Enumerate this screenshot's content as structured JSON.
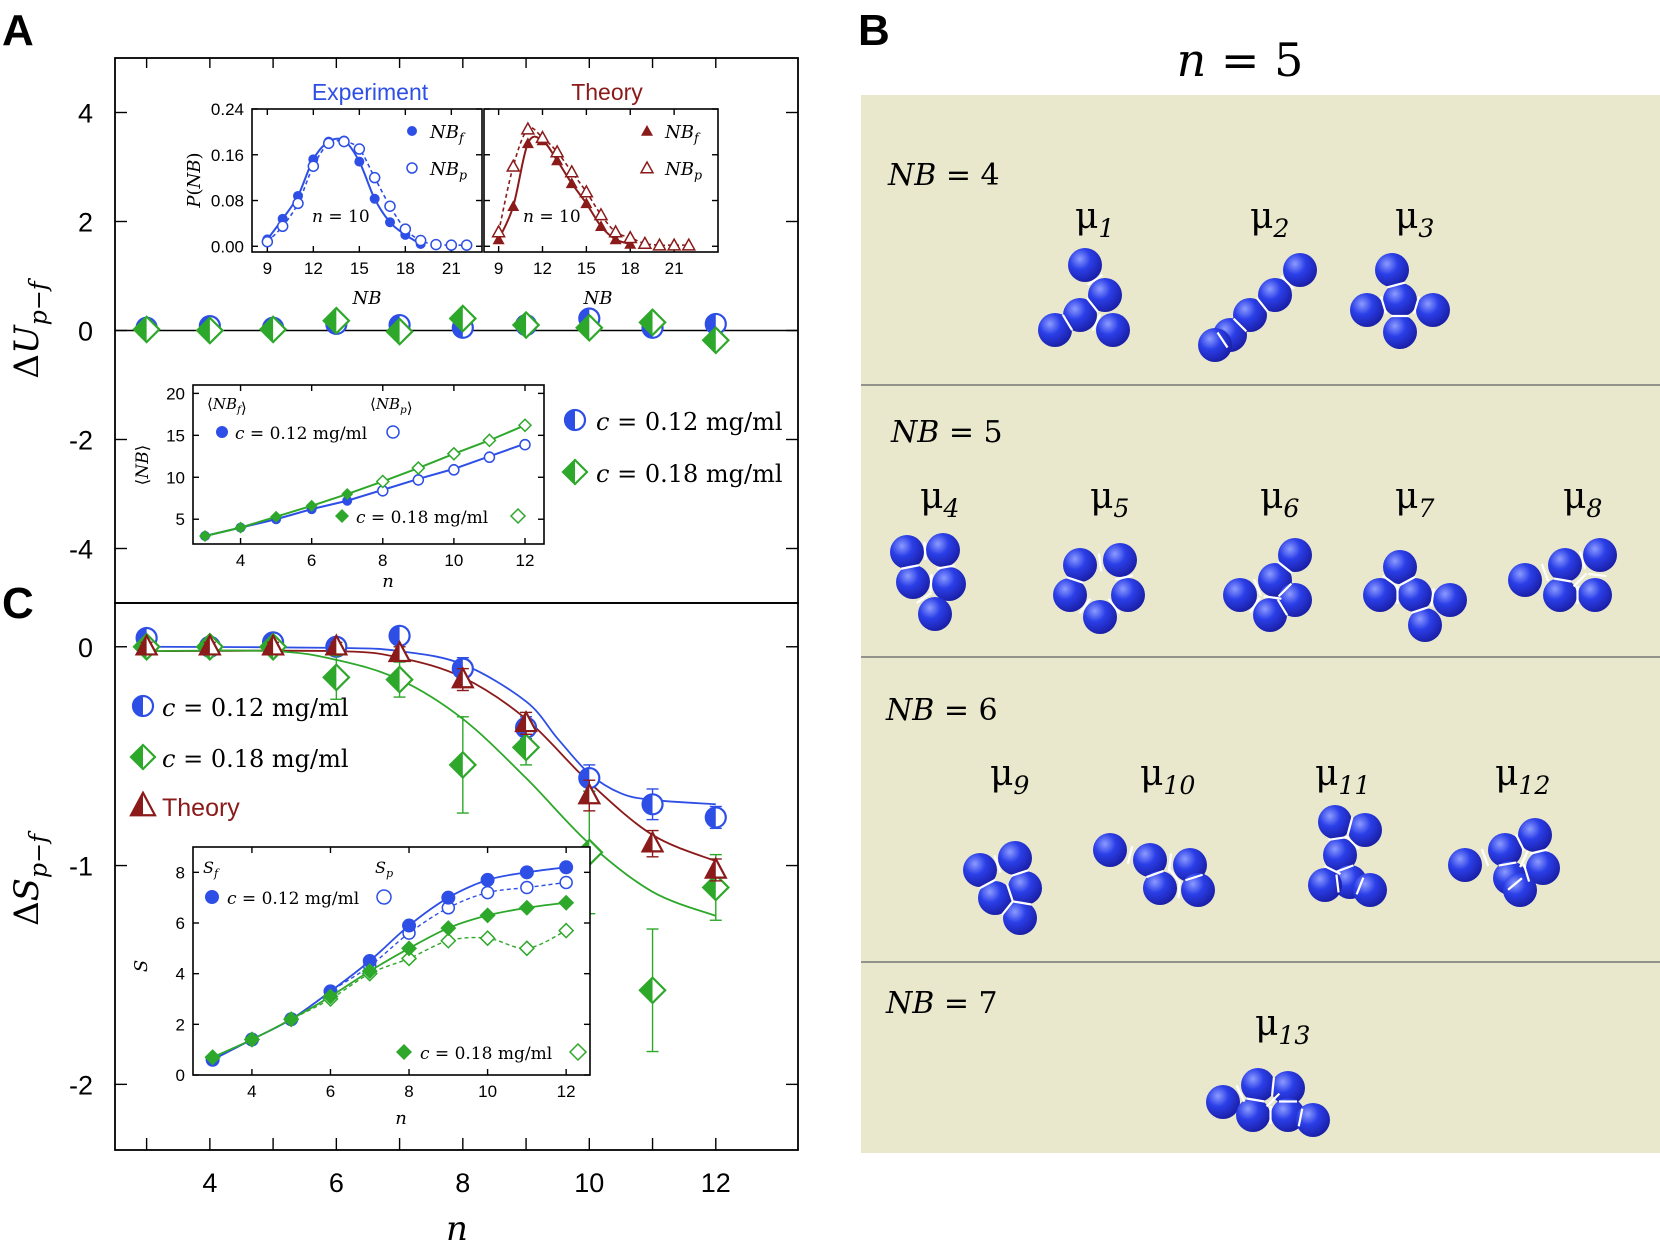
{
  "panels": {
    "a": "A",
    "b": "B",
    "c": "C"
  },
  "colors": {
    "blue": "#2E4FE6",
    "green": "#2EA82A",
    "dark_red": "#8B1A1A",
    "bg_beige": "#E9E8CC",
    "sphere": "#2B3FE8"
  },
  "chart_data": [
    {
      "id": "A",
      "type": "scatter",
      "ylabel": "ΔU_{p−f}",
      "xlim": [
        2.5,
        13.3
      ],
      "ylim": [
        -5,
        5
      ],
      "yticks": [
        -4,
        -2,
        0,
        2,
        4
      ],
      "ytick_labels": [
        "-4",
        "-2",
        "0",
        "2",
        "4"
      ],
      "hline": 0,
      "series": [
        {
          "name": "c = 0.12 mg/ml",
          "marker": "half-circle",
          "color": "#2E4FE6",
          "x": [
            3,
            4,
            5,
            6,
            7,
            8,
            9,
            10,
            11,
            12
          ],
          "y": [
            0.05,
            0.08,
            0.05,
            0.12,
            0.1,
            0.05,
            0.1,
            0.22,
            0.05,
            0.12
          ]
        },
        {
          "name": "c = 0.18 mg/ml",
          "marker": "half-diamond",
          "color": "#2EA82A",
          "x": [
            3,
            4,
            5,
            6,
            7,
            8,
            9,
            10,
            11,
            12
          ],
          "y": [
            0.02,
            0.0,
            0.02,
            0.18,
            -0.02,
            0.22,
            0.1,
            0.05,
            0.15,
            -0.18
          ]
        }
      ]
    },
    {
      "id": "A-inset-experiment",
      "type": "scatter",
      "title": "Experiment",
      "xlabel": "NB",
      "ylabel": "P(NB)",
      "annotation": "n = 10",
      "xlim": [
        8,
        23
      ],
      "ylim": [
        -0.01,
        0.24
      ],
      "xticks": [
        9,
        12,
        15,
        18,
        21
      ],
      "yticks": [
        0.0,
        0.08,
        0.16,
        0.24
      ],
      "ytick_labels": [
        "0.00",
        "0.08",
        "0.16",
        "0.24"
      ],
      "series": [
        {
          "name": "NB_f",
          "marker": "filled-circle",
          "x": [
            9,
            10,
            11,
            12,
            13,
            14,
            15,
            16,
            17,
            18,
            19
          ],
          "y": [
            0.012,
            0.048,
            0.088,
            0.152,
            0.183,
            0.185,
            0.148,
            0.083,
            0.042,
            0.02,
            0.004
          ]
        },
        {
          "name": "NB_p",
          "marker": "open-circle",
          "x": [
            9,
            10,
            11,
            12,
            13,
            14,
            15,
            16,
            17,
            18,
            19,
            20,
            21,
            22
          ],
          "y": [
            0.008,
            0.035,
            0.075,
            0.14,
            0.18,
            0.183,
            0.17,
            0.12,
            0.07,
            0.03,
            0.01,
            0.003,
            0.002,
            0.002
          ]
        }
      ]
    },
    {
      "id": "A-inset-theory",
      "type": "scatter",
      "title": "Theory",
      "xlabel": "NB",
      "annotation": "n = 10",
      "xlim": [
        8,
        24
      ],
      "ylim": [
        -0.01,
        0.24
      ],
      "xticks": [
        9,
        12,
        15,
        18,
        21
      ],
      "series": [
        {
          "name": "NB_f",
          "marker": "filled-triangle",
          "x": [
            9,
            10,
            11,
            12,
            13,
            14,
            15,
            16,
            17,
            18
          ],
          "y": [
            0.012,
            0.07,
            0.18,
            0.185,
            0.15,
            0.11,
            0.075,
            0.035,
            0.012,
            0.004
          ]
        },
        {
          "name": "NB_p",
          "marker": "open-triangle",
          "x": [
            9,
            10,
            11,
            12,
            13,
            14,
            15,
            16,
            17,
            18,
            19,
            20,
            21,
            22
          ],
          "y": [
            0.025,
            0.14,
            0.205,
            0.19,
            0.165,
            0.13,
            0.095,
            0.055,
            0.025,
            0.015,
            0.005,
            0.002,
            0.002,
            0.002
          ]
        }
      ]
    },
    {
      "id": "A-inset-mean-NB",
      "type": "line",
      "xlabel": "n",
      "ylabel": "⟨NB⟩",
      "left_label": "⟨NB_f⟩",
      "right_label": "⟨NB_p⟩",
      "xlim": [
        3,
        12
      ],
      "ylim": [
        3,
        21
      ],
      "xticks": [
        4,
        6,
        8,
        10,
        12
      ],
      "yticks": [
        5,
        10,
        15,
        20
      ],
      "series": [
        {
          "name": "c = 0.12 mg/ml",
          "color": "#2E4FE6",
          "x": [
            3,
            4,
            5,
            6,
            7,
            8,
            9,
            10,
            11,
            12
          ],
          "y_f": [
            3,
            4,
            5,
            6.2,
            7.2,
            8.5,
            9.8,
            11,
            12.5,
            14
          ]
        },
        {
          "name": "c = 0.18 mg/ml",
          "color": "#2EA82A",
          "x": [
            3,
            4,
            5,
            6,
            7,
            8,
            9,
            10,
            11,
            12
          ],
          "y_f": [
            3,
            4,
            5.3,
            6.6,
            8,
            9.5,
            11.1,
            12.8,
            14.4,
            16.2
          ]
        }
      ]
    },
    {
      "id": "C",
      "type": "scatter",
      "xlabel": "n",
      "ylabel": "ΔS_{p−f}",
      "xlim": [
        2.5,
        13.3
      ],
      "ylim": [
        -2.3,
        0.2
      ],
      "xticks": [
        4,
        6,
        8,
        10,
        12
      ],
      "yticks": [
        -2,
        -1,
        0
      ],
      "xtick_labels": [
        "4",
        "6",
        "8",
        "10",
        "12"
      ],
      "ytick_labels": [
        "-2",
        "-1",
        "0"
      ],
      "series": [
        {
          "name": "c = 0.12 mg/ml",
          "marker": "half-circle",
          "color": "#2E4FE6",
          "x": [
            3,
            4,
            5,
            6,
            7,
            8,
            9,
            10,
            11,
            12
          ],
          "y": [
            0.04,
            0.0,
            0.02,
            0.0,
            0.05,
            -0.1,
            -0.37,
            -0.6,
            -0.72,
            -0.78
          ],
          "err": [
            0.02,
            0.02,
            0.02,
            0.02,
            0.04,
            0.05,
            0.05,
            0.06,
            0.07,
            0.05
          ]
        },
        {
          "name": "c = 0.18 mg/ml",
          "marker": "half-diamond",
          "color": "#2EA82A",
          "x": [
            3,
            4,
            5,
            6,
            7,
            8,
            9,
            10,
            11,
            12
          ],
          "y": [
            0.0,
            0.0,
            0.0,
            -0.14,
            -0.15,
            -0.54,
            -0.46,
            -0.94,
            -1.57,
            -1.1
          ],
          "err": [
            0.02,
            0.02,
            0.02,
            0.1,
            0.08,
            0.22,
            0.08,
            0.28,
            0.28,
            0.15
          ]
        },
        {
          "name": "Theory",
          "marker": "half-triangle",
          "color": "#8B1A1A",
          "x": [
            3,
            4,
            5,
            6,
            7,
            8,
            9,
            10,
            11,
            12
          ],
          "y": [
            0.0,
            0.0,
            0.0,
            0.0,
            -0.03,
            -0.15,
            -0.35,
            -0.68,
            -0.9,
            -1.02
          ],
          "err": [
            0.02,
            0.02,
            0.02,
            0.02,
            0.03,
            0.05,
            0.05,
            0.07,
            0.06,
            0.05
          ]
        }
      ],
      "fit_curves": [
        {
          "color": "#2E4FE6",
          "x": [
            3,
            6,
            7,
            8,
            9,
            9.5,
            10,
            10.5,
            11,
            12
          ],
          "y": [
            0,
            -0.005,
            -0.02,
            -0.08,
            -0.25,
            -0.42,
            -0.58,
            -0.67,
            -0.7,
            -0.72
          ]
        },
        {
          "color": "#8B1A1A",
          "x": [
            3,
            6,
            7,
            8,
            9,
            10,
            11,
            12
          ],
          "y": [
            -0.02,
            -0.02,
            -0.05,
            -0.14,
            -0.33,
            -0.62,
            -0.86,
            -0.98
          ]
        },
        {
          "color": "#2EA82A",
          "x": [
            3,
            5,
            6,
            7,
            8,
            9,
            10,
            11,
            12
          ],
          "y": [
            -0.02,
            -0.02,
            -0.06,
            -0.15,
            -0.33,
            -0.6,
            -0.9,
            -1.12,
            -1.23
          ]
        }
      ]
    },
    {
      "id": "C-inset",
      "type": "line",
      "xlabel": "n",
      "ylabel": "S",
      "left_label": "S_f",
      "right_label": "S_p",
      "xlim": [
        2.5,
        12.2
      ],
      "ylim": [
        0,
        9
      ],
      "xticks": [
        4,
        6,
        8,
        10,
        12
      ],
      "yticks": [
        0,
        2,
        4,
        6,
        8
      ],
      "series": [
        {
          "name": "c = 0.12 mg/ml",
          "color": "#2E4FE6",
          "x": [
            3,
            4,
            5,
            6,
            7,
            8,
            9,
            10,
            11,
            12
          ],
          "S_f": [
            0.6,
            1.4,
            2.2,
            3.3,
            4.5,
            5.9,
            7.0,
            7.7,
            8.0,
            8.2
          ],
          "S_p": [
            0.6,
            1.4,
            2.2,
            3.3,
            4.3,
            5.6,
            6.6,
            7.2,
            7.4,
            7.6
          ]
        },
        {
          "name": "c = 0.18 mg/ml",
          "color": "#2EA82A",
          "x": [
            3,
            4,
            5,
            6,
            7,
            8,
            9,
            10,
            11,
            12
          ],
          "S_f": [
            0.7,
            1.4,
            2.2,
            3.1,
            4.1,
            5.0,
            5.8,
            6.3,
            6.6,
            6.8
          ],
          "S_p": [
            0.7,
            1.4,
            2.2,
            3.0,
            4.0,
            4.6,
            5.3,
            5.4,
            5.0,
            5.7
          ]
        }
      ]
    }
  ],
  "panel_b": {
    "title": "n = 5",
    "groups": [
      {
        "label": "NB = 4",
        "items": [
          {
            "sub": "1"
          },
          {
            "sub": "2"
          },
          {
            "sub": "3"
          }
        ]
      },
      {
        "label": "NB = 5",
        "items": [
          {
            "sub": "4"
          },
          {
            "sub": "5"
          },
          {
            "sub": "6"
          },
          {
            "sub": "7"
          },
          {
            "sub": "8"
          }
        ]
      },
      {
        "label": "NB = 6",
        "items": [
          {
            "sub": "9"
          },
          {
            "sub": "10"
          },
          {
            "sub": "11"
          },
          {
            "sub": "12"
          }
        ]
      },
      {
        "label": "NB = 7",
        "items": [
          {
            "sub": "13"
          }
        ]
      }
    ]
  }
}
